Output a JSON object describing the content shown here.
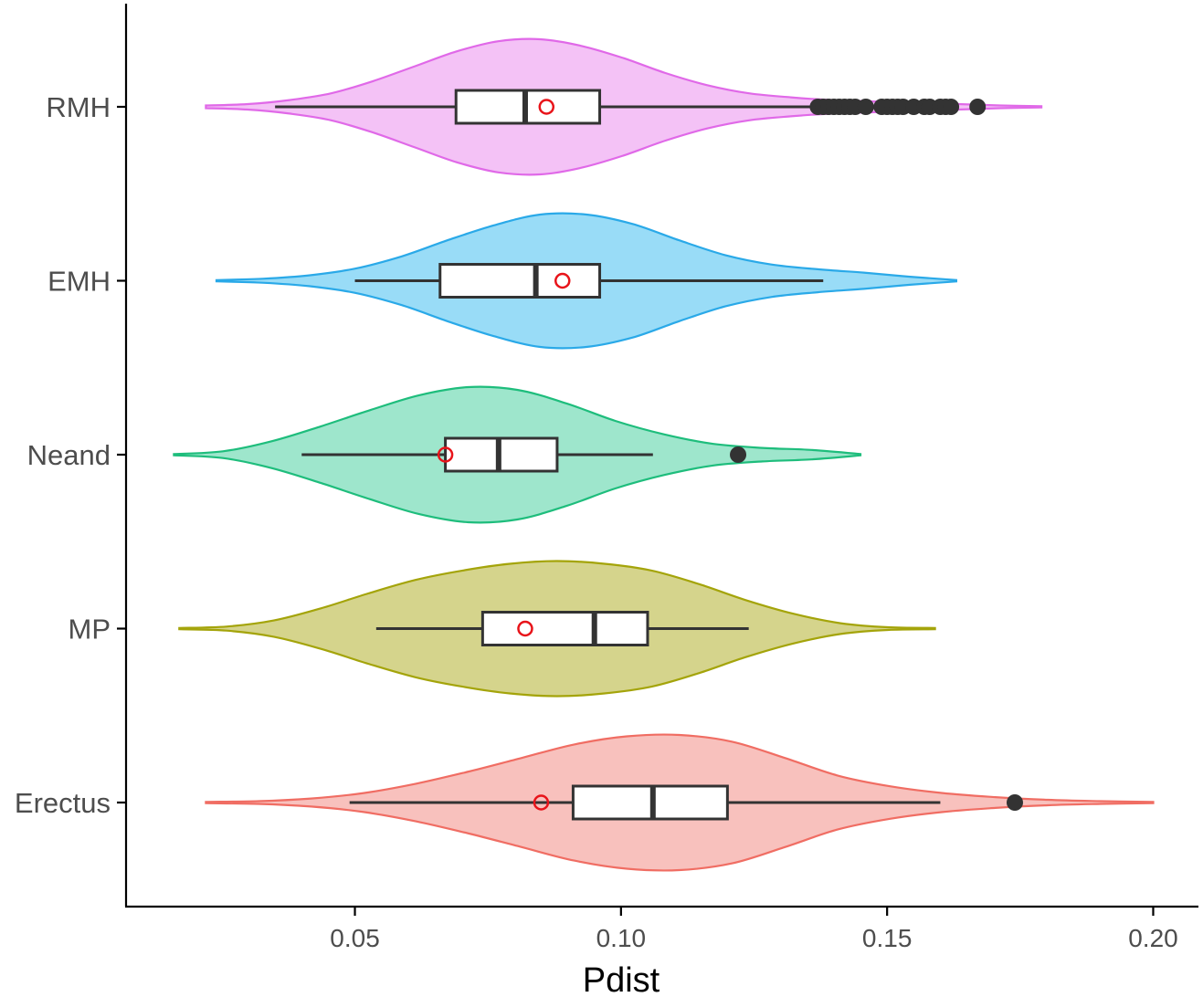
{
  "chart_data": {
    "type": "violin",
    "xlabel": "Pdist",
    "ylabel": "",
    "xlim": [
      0.007,
      0.2085
    ],
    "xticks": [
      0.05,
      0.1,
      0.15,
      0.2
    ],
    "xtick_labels": [
      "0.05",
      "0.10",
      "0.15",
      "0.20"
    ],
    "categories": [
      "RMH",
      "EMH",
      "Neand",
      "MP",
      "Erectus"
    ],
    "grid": false,
    "legend": "none",
    "mean_marker_color": "#e8141a",
    "series": [
      {
        "name": "RMH",
        "fill": "#f4c2f6",
        "stroke": "#e069e8",
        "range": [
          0.022,
          0.179
        ],
        "density": [
          0.02,
          0.04,
          0.1,
          0.2,
          0.38,
          0.6,
          0.82,
          0.97,
          1.0,
          0.9,
          0.72,
          0.5,
          0.32,
          0.2,
          0.14,
          0.1,
          0.08,
          0.06,
          0.04,
          0.02,
          0.01
        ],
        "whisker_low": 0.035,
        "q1": 0.069,
        "median": 0.082,
        "q3": 0.096,
        "whisker_high": 0.137,
        "mean": 0.086,
        "outliers": [
          0.137,
          0.138,
          0.139,
          0.14,
          0.141,
          0.142,
          0.143,
          0.144,
          0.146,
          0.149,
          0.15,
          0.151,
          0.152,
          0.153,
          0.155,
          0.157,
          0.158,
          0.16,
          0.161,
          0.162,
          0.167
        ]
      },
      {
        "name": "EMH",
        "fill": "#99dcf7",
        "stroke": "#2aa9e8",
        "range": [
          0.024,
          0.163
        ],
        "density": [
          0.01,
          0.03,
          0.08,
          0.18,
          0.36,
          0.6,
          0.82,
          0.98,
          0.98,
          0.84,
          0.6,
          0.38,
          0.24,
          0.17,
          0.12,
          0.06,
          0.01
        ],
        "whisker_low": 0.05,
        "q1": 0.066,
        "median": 0.084,
        "q3": 0.096,
        "whisker_high": 0.138,
        "mean": 0.089,
        "outliers": []
      },
      {
        "name": "Neand",
        "fill": "#9ee6cc",
        "stroke": "#1ebd7c",
        "range": [
          0.016,
          0.145
        ],
        "density": [
          0.01,
          0.05,
          0.2,
          0.42,
          0.66,
          0.88,
          1.0,
          0.96,
          0.76,
          0.5,
          0.3,
          0.16,
          0.1,
          0.07,
          0.01
        ],
        "whisker_low": 0.04,
        "q1": 0.067,
        "median": 0.077,
        "q3": 0.088,
        "whisker_high": 0.106,
        "mean": 0.067,
        "outliers": [
          0.122
        ]
      },
      {
        "name": "MP",
        "fill": "#d5d48c",
        "stroke": "#a4a40a",
        "range": [
          0.017,
          0.159
        ],
        "density": [
          0.01,
          0.03,
          0.12,
          0.3,
          0.52,
          0.72,
          0.86,
          0.96,
          1.0,
          0.96,
          0.86,
          0.66,
          0.42,
          0.22,
          0.08,
          0.02,
          0.01
        ],
        "whisker_low": 0.054,
        "q1": 0.074,
        "median": 0.095,
        "q3": 0.105,
        "whisker_high": 0.124,
        "mean": 0.082,
        "outliers": []
      },
      {
        "name": "Erectus",
        "fill": "#f8c1bd",
        "stroke": "#f06d63",
        "range": [
          0.022,
          0.2
        ],
        "density": [
          0.01,
          0.02,
          0.06,
          0.14,
          0.28,
          0.46,
          0.66,
          0.86,
          0.98,
          1.0,
          0.9,
          0.66,
          0.4,
          0.24,
          0.14,
          0.08,
          0.04,
          0.02,
          0.01
        ],
        "whisker_low": 0.049,
        "q1": 0.091,
        "median": 0.106,
        "q3": 0.12,
        "whisker_high": 0.16,
        "mean": 0.085,
        "outliers": [
          0.174
        ]
      }
    ]
  }
}
